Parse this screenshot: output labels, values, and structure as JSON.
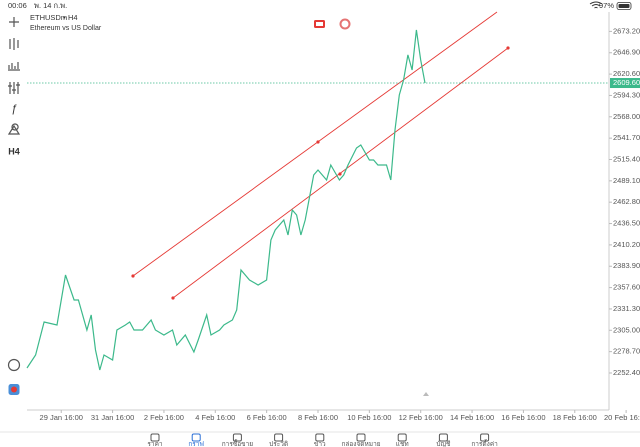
{
  "status_bar": {
    "time": "00:06",
    "date": "พ. 14 ก.พ.",
    "battery": "97%"
  },
  "chart_data": {
    "type": "line",
    "symbol": "ETHUSDm",
    "separator": "•",
    "timeframe": "H4",
    "description": "Ethereum vs US Dollar",
    "x": [
      0,
      2,
      4,
      7,
      9,
      11,
      12,
      14,
      15,
      16,
      17,
      18,
      20,
      21,
      23,
      24,
      25,
      27,
      29,
      30,
      32,
      34,
      35,
      37,
      39,
      40,
      42,
      43,
      45,
      46,
      48,
      49,
      50,
      52,
      54,
      56,
      57,
      58,
      60,
      61,
      62,
      63,
      64,
      65,
      67,
      68,
      70,
      71,
      73,
      74,
      75,
      77,
      78,
      80,
      81,
      82,
      84,
      85,
      86,
      87,
      88,
      89,
      90,
      91,
      92,
      93
    ],
    "series": [
      {
        "color": "#3cb98b",
        "values": [
          2258.6,
          2274.6,
          2315.2,
          2311.5,
          2373.1,
          2342.3,
          2342.3,
          2305.4,
          2323.9,
          2280.7,
          2256.1,
          2274.6,
          2268.4,
          2305.4,
          2311.5,
          2315.2,
          2305.4,
          2305.4,
          2317.7,
          2305.4,
          2299.2,
          2305.4,
          2286.9,
          2299.2,
          2278.3,
          2293.0,
          2323.9,
          2299.2,
          2305.4,
          2311.5,
          2317.7,
          2330.0,
          2379.3,
          2367.0,
          2360.8,
          2367.0,
          2416.2,
          2428.6,
          2440.9,
          2422.4,
          2453.2,
          2447.0,
          2422.4,
          2440.9,
          2496.3,
          2502.5,
          2490.2,
          2508.6,
          2490.2,
          2496.3,
          2508.6,
          2529.6,
          2533.3,
          2514.8,
          2514.8,
          2508.6,
          2508.6,
          2490.2,
          2551.8,
          2594.9,
          2613.4,
          2644.2,
          2625.7,
          2675.0,
          2638.0,
          2609.6
        ]
      }
    ],
    "xlim": [
      0,
      136
    ],
    "xticks": [
      {
        "value": 8,
        "label": "29 Jan 16:00"
      },
      {
        "value": 20,
        "label": "31 Jan 16:00"
      },
      {
        "value": 32,
        "label": "2 Feb 16:00"
      },
      {
        "value": 44,
        "label": "4 Feb 16:00"
      },
      {
        "value": 56,
        "label": "6 Feb 16:00"
      },
      {
        "value": 68,
        "label": "8 Feb 16:00"
      },
      {
        "value": 80,
        "label": "10 Feb 16:00"
      },
      {
        "value": 92,
        "label": "12 Feb 16:00"
      },
      {
        "value": 104,
        "label": "14 Feb 16:00"
      },
      {
        "value": 116,
        "label": "16 Feb 16:00"
      },
      {
        "value": 128,
        "label": "18 Feb 16:00"
      },
      {
        "value": 140,
        "label": "20 Feb 16:00"
      }
    ],
    "ylim": [
      2206.8,
      2697.1
    ],
    "yticks": [
      {
        "value": 2673.2,
        "label": "2673.20"
      },
      {
        "value": 2646.9,
        "label": "2646.90"
      },
      {
        "value": 2620.6,
        "label": "2620.60"
      },
      {
        "value": 2594.3,
        "label": "2594.30"
      },
      {
        "value": 2568.0,
        "label": "2568.00"
      },
      {
        "value": 2541.7,
        "label": "2541.70"
      },
      {
        "value": 2515.4,
        "label": "2515.40"
      },
      {
        "value": 2489.1,
        "label": "2489.10"
      },
      {
        "value": 2462.8,
        "label": "2462.80"
      },
      {
        "value": 2436.5,
        "label": "2436.50"
      },
      {
        "value": 2410.2,
        "label": "2410.20"
      },
      {
        "value": 2383.9,
        "label": "2383.90"
      },
      {
        "value": 2357.6,
        "label": "2357.60"
      },
      {
        "value": 2331.3,
        "label": "2331.30"
      },
      {
        "value": 2305.0,
        "label": "2305.00"
      },
      {
        "value": 2278.7,
        "label": "2278.70"
      },
      {
        "value": 2252.4,
        "label": "2252.40"
      }
    ],
    "current_price": {
      "value": 2609.6,
      "label": "2609.60",
      "color": "#3cb98b"
    },
    "grid": false
  },
  "tab_bar": {
    "tabs": [
      "ราคา",
      "กราฟ",
      "การซื้อขาย",
      "ประวัติ",
      "ข่าว",
      "กล่องจดหมาย",
      "แชท",
      "บัญชี",
      "การตั้งค่า"
    ],
    "active": 1
  }
}
